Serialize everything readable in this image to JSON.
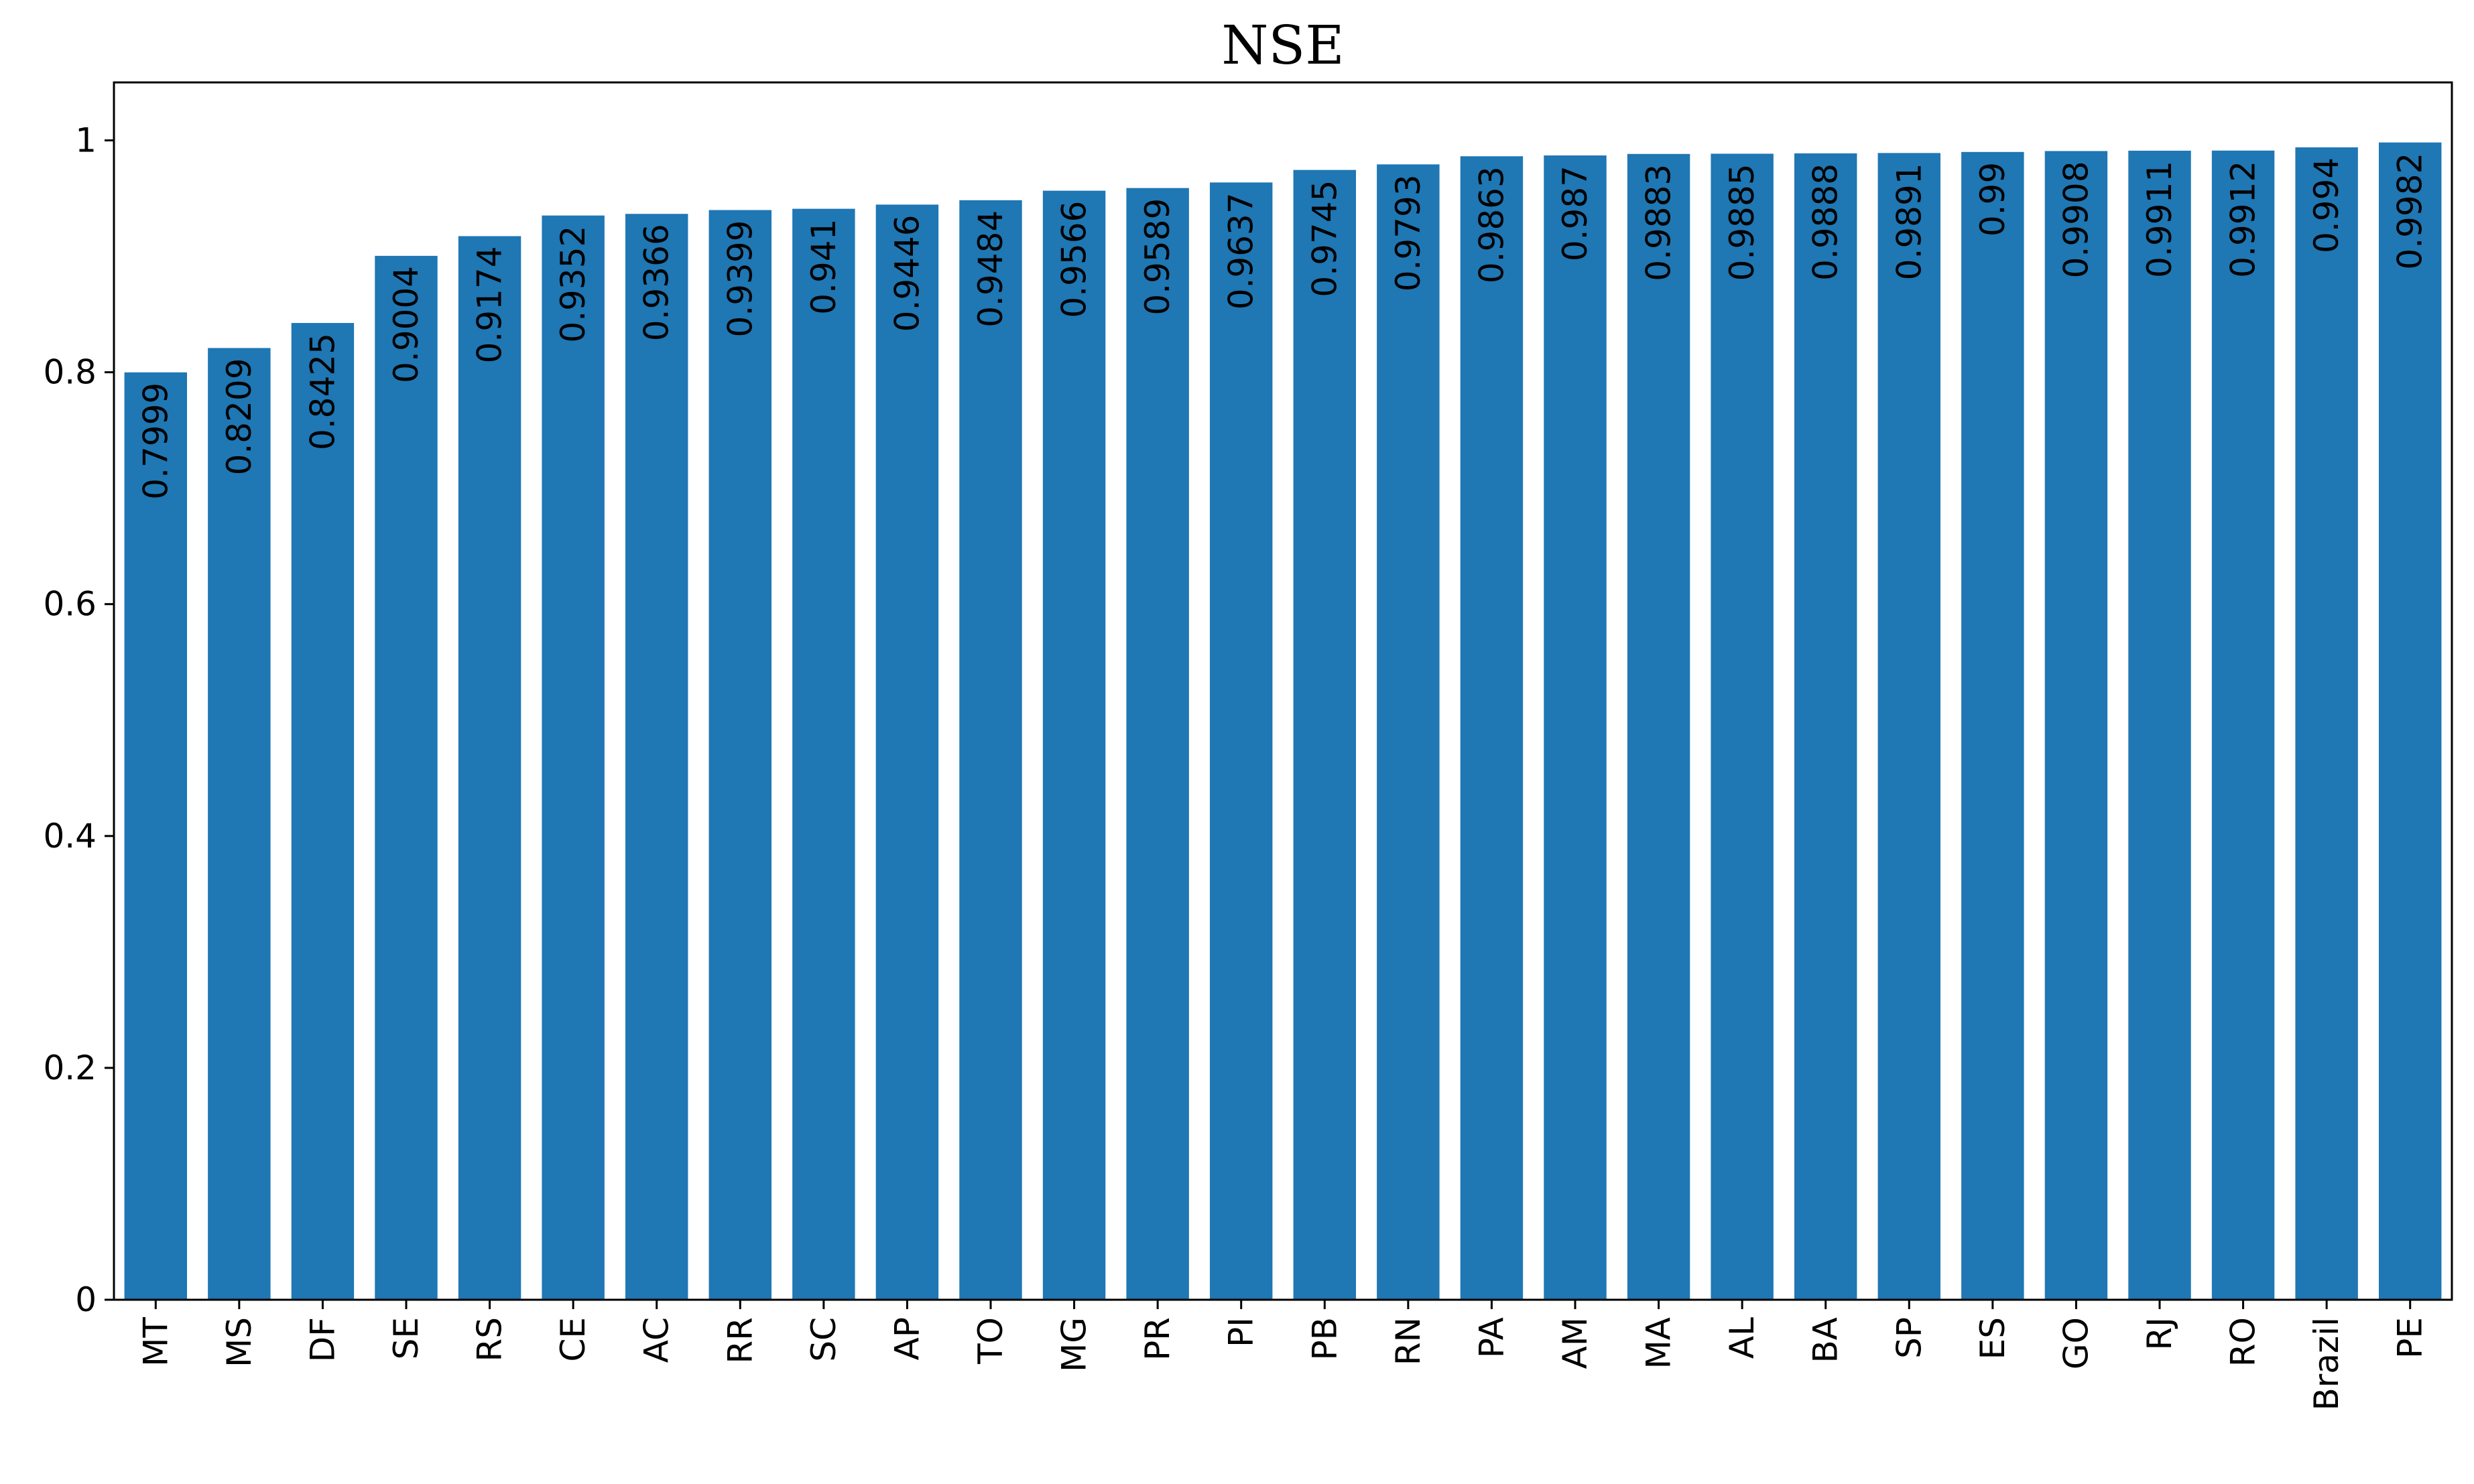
{
  "chart_data": {
    "type": "bar",
    "title": "NSE",
    "xlabel": "",
    "ylabel": "",
    "ylim": [
      0,
      1.05
    ],
    "yticks": [
      0,
      0.2,
      0.4,
      0.6,
      0.8,
      1
    ],
    "ytick_labels": [
      "0",
      "0.2",
      "0.4",
      "0.6",
      "0.8",
      "1"
    ],
    "grid": false,
    "bar_color": "#1f77b4",
    "categories": [
      "MT",
      "MS",
      "DF",
      "SE",
      "RS",
      "CE",
      "AC",
      "RR",
      "SC",
      "AP",
      "TO",
      "MG",
      "PR",
      "PI",
      "PB",
      "RN",
      "PA",
      "AM",
      "MA",
      "AL",
      "BA",
      "SP",
      "ES",
      "GO",
      "RJ",
      "RO",
      "Brazil",
      "PE"
    ],
    "values": [
      0.7999,
      0.8209,
      0.8425,
      0.9004,
      0.9174,
      0.9352,
      0.9366,
      0.9399,
      0.941,
      0.9446,
      0.9484,
      0.9566,
      0.9589,
      0.9637,
      0.9745,
      0.9793,
      0.9863,
      0.987,
      0.9883,
      0.9885,
      0.9888,
      0.9891,
      0.99,
      0.9908,
      0.9911,
      0.9912,
      0.994,
      0.9982
    ],
    "data_labels": [
      "0.7999",
      "0.8209",
      "0.8425",
      "0.9004",
      "0.9174",
      "0.9352",
      "0.9366",
      "0.9399",
      "0.941",
      "0.9446",
      "0.9484",
      "0.9566",
      "0.9589",
      "0.9637",
      "0.9745",
      "0.9793",
      "0.9863",
      "0.987",
      "0.9883",
      "0.9885",
      "0.9888",
      "0.9891",
      "0.99",
      "0.9908",
      "0.9911",
      "0.9912",
      "0.994",
      "0.9982"
    ]
  }
}
